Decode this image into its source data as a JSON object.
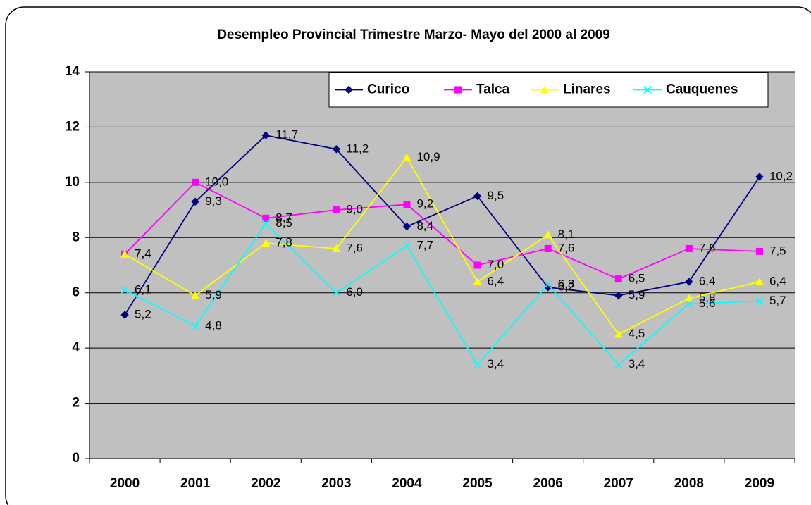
{
  "chart_data": {
    "type": "line",
    "title": "Desempleo Provincial Trimestre Marzo- Mayo del 2000 al 2009",
    "categories": [
      "2000",
      "2001",
      "2002",
      "2003",
      "2004",
      "2005",
      "2006",
      "2007",
      "2008",
      "2009"
    ],
    "series": [
      {
        "name": "Curico",
        "color": "#000080",
        "marker": "diamond",
        "values": [
          5.2,
          9.3,
          11.7,
          11.2,
          8.4,
          9.5,
          6.2,
          5.9,
          6.4,
          10.2
        ],
        "value_labels": [
          "5,2",
          "9,3",
          "11,7",
          "11,2",
          "8,4",
          "9,5",
          "6,2",
          "5,9",
          "6,4",
          "10,2"
        ]
      },
      {
        "name": "Talca",
        "color": "#ff00ff",
        "marker": "square",
        "values": [
          7.4,
          10.0,
          8.7,
          9.0,
          9.2,
          7.0,
          7.6,
          6.5,
          7.6,
          7.5
        ],
        "value_labels": [
          "7,4",
          "10,0",
          "8,7",
          "9,0",
          "9,2",
          "7,0",
          "7,6",
          "6,5",
          "7,6",
          "7,5"
        ]
      },
      {
        "name": "Linares",
        "color": "#ffff00",
        "marker": "triangle",
        "values": [
          7.4,
          5.9,
          7.8,
          7.6,
          10.9,
          6.4,
          8.1,
          4.5,
          5.8,
          6.4
        ],
        "value_labels": [
          "7,4",
          "5,9",
          "7,8",
          "7,6",
          "10,9",
          "6,4",
          "8,1",
          "4,5",
          "5,8",
          "6,4"
        ]
      },
      {
        "name": "Cauquenes",
        "color": "#00ffff",
        "marker": "x",
        "values": [
          6.1,
          4.8,
          8.5,
          6.0,
          7.7,
          3.4,
          6.3,
          3.4,
          5.6,
          5.7
        ],
        "value_labels": [
          "6,1",
          "4,8",
          "8,5",
          "6,0",
          "7,7",
          "3,4",
          "6,3",
          "3,4",
          "5,6",
          "5,7"
        ]
      }
    ],
    "ylim": [
      0,
      14
    ],
    "yticks": [
      0,
      2,
      4,
      6,
      8,
      10,
      12,
      14
    ],
    "grid": true,
    "legend": "top-right"
  }
}
